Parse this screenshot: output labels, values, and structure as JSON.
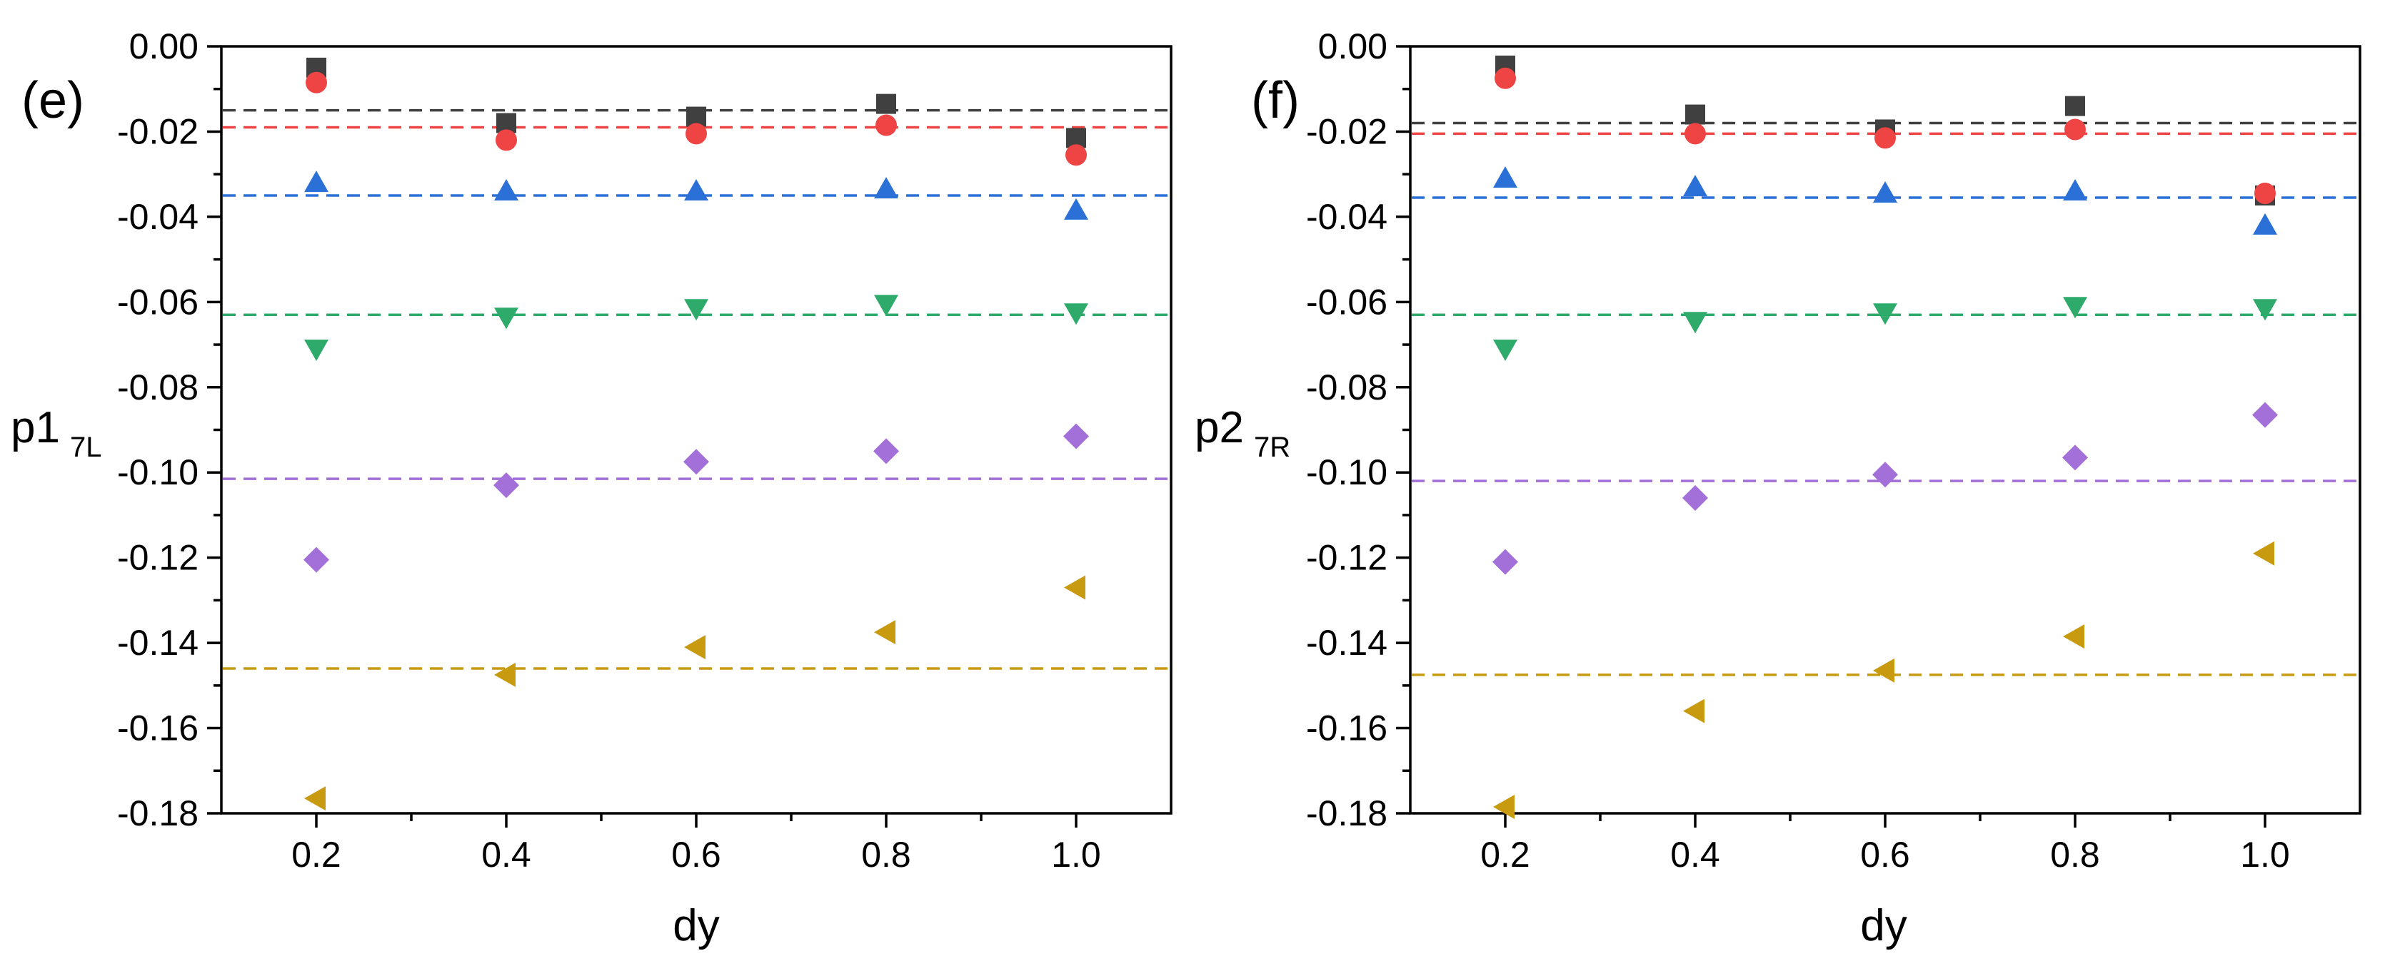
{
  "chart_data": [
    {
      "type": "scatter",
      "panel_label": "(e)",
      "xlabel": "dy",
      "ylabel_main": "p1",
      "ylabel_sub": "7L",
      "xlim": [
        0.1,
        1.1
      ],
      "ylim": [
        -0.18,
        0.0
      ],
      "x_ticks": [
        0.2,
        0.4,
        0.6,
        0.8,
        1.0
      ],
      "x_tick_labels": [
        "0.2",
        "0.4",
        "0.6",
        "0.8",
        "1.0"
      ],
      "x_minor_ticks": [
        0.3,
        0.5,
        0.7,
        0.9
      ],
      "y_ticks": [
        0.0,
        -0.02,
        -0.04,
        -0.06,
        -0.08,
        -0.1,
        -0.12,
        -0.14,
        -0.16,
        -0.18
      ],
      "y_tick_labels": [
        "0.00",
        "-0.02",
        "-0.04",
        "-0.06",
        "-0.08",
        "-0.10",
        "-0.12",
        "-0.14",
        "-0.16",
        "-0.18"
      ],
      "grid": false,
      "x": [
        0.2,
        0.4,
        0.6,
        0.8,
        1.0
      ],
      "series": [
        {
          "name": "black-square",
          "marker": "square",
          "color": "#404040",
          "values": [
            -0.005,
            -0.018,
            -0.0165,
            -0.0135,
            -0.0215
          ],
          "reference": -0.015
        },
        {
          "name": "red-circle",
          "marker": "circle",
          "color": "#ef4444",
          "values": [
            -0.0085,
            -0.022,
            -0.0205,
            -0.0185,
            -0.0255
          ],
          "reference": -0.019
        },
        {
          "name": "blue-triangle-up",
          "marker": "triangle-up",
          "color": "#2a70d6",
          "values": [
            -0.032,
            -0.034,
            -0.034,
            -0.0335,
            -0.0385
          ],
          "reference": -0.035
        },
        {
          "name": "green-triangle-down",
          "marker": "triangle-down",
          "color": "#2eaa6a",
          "values": [
            -0.071,
            -0.0635,
            -0.0615,
            -0.0605,
            -0.0625
          ],
          "reference": -0.063
        },
        {
          "name": "purple-diamond",
          "marker": "diamond",
          "color": "#a36fd8",
          "values": [
            -0.1205,
            -0.103,
            -0.0975,
            -0.095,
            -0.0915
          ],
          "reference": -0.1015
        },
        {
          "name": "gold-triangle-left",
          "marker": "triangle-left",
          "color": "#c89a10",
          "values": [
            -0.1765,
            -0.1475,
            -0.141,
            -0.1375,
            -0.127
          ],
          "reference": -0.146
        }
      ]
    },
    {
      "type": "scatter",
      "panel_label": "(f)",
      "xlabel": "dy",
      "ylabel_main": "p2",
      "ylabel_sub": "7R",
      "xlim": [
        0.1,
        1.1
      ],
      "ylim": [
        -0.18,
        0.0
      ],
      "x_ticks": [
        0.2,
        0.4,
        0.6,
        0.8,
        1.0
      ],
      "x_tick_labels": [
        "0.2",
        "0.4",
        "0.6",
        "0.8",
        "1.0"
      ],
      "x_minor_ticks": [
        0.3,
        0.5,
        0.7,
        0.9
      ],
      "y_ticks": [
        0.0,
        -0.02,
        -0.04,
        -0.06,
        -0.08,
        -0.1,
        -0.12,
        -0.14,
        -0.16,
        -0.18
      ],
      "y_tick_labels": [
        "0.00",
        "-0.02",
        "-0.04",
        "-0.06",
        "-0.08",
        "-0.10",
        "-0.12",
        "-0.14",
        "-0.16",
        "-0.18"
      ],
      "grid": false,
      "x": [
        0.2,
        0.4,
        0.6,
        0.8,
        1.0
      ],
      "series": [
        {
          "name": "black-square",
          "marker": "square",
          "color": "#404040",
          "values": [
            -0.0045,
            -0.016,
            -0.0195,
            -0.014,
            -0.035
          ],
          "reference": -0.018
        },
        {
          "name": "red-circle",
          "marker": "circle",
          "color": "#ef4444",
          "values": [
            -0.0075,
            -0.0205,
            -0.0215,
            -0.0195,
            -0.0345
          ],
          "reference": -0.0205
        },
        {
          "name": "blue-triangle-up",
          "marker": "triangle-up",
          "color": "#2a70d6",
          "values": [
            -0.031,
            -0.033,
            -0.0345,
            -0.034,
            -0.042
          ],
          "reference": -0.0355
        },
        {
          "name": "green-triangle-down",
          "marker": "triangle-down",
          "color": "#2eaa6a",
          "values": [
            -0.071,
            -0.0645,
            -0.0625,
            -0.061,
            -0.0615
          ],
          "reference": -0.063
        },
        {
          "name": "purple-diamond",
          "marker": "diamond",
          "color": "#a36fd8",
          "values": [
            -0.121,
            -0.106,
            -0.1005,
            -0.0965,
            -0.0865
          ],
          "reference": -0.102
        },
        {
          "name": "gold-triangle-left",
          "marker": "triangle-left",
          "color": "#c89a10",
          "values": [
            -0.1785,
            -0.156,
            -0.1465,
            -0.1385,
            -0.119
          ],
          "reference": -0.1475
        }
      ]
    }
  ]
}
